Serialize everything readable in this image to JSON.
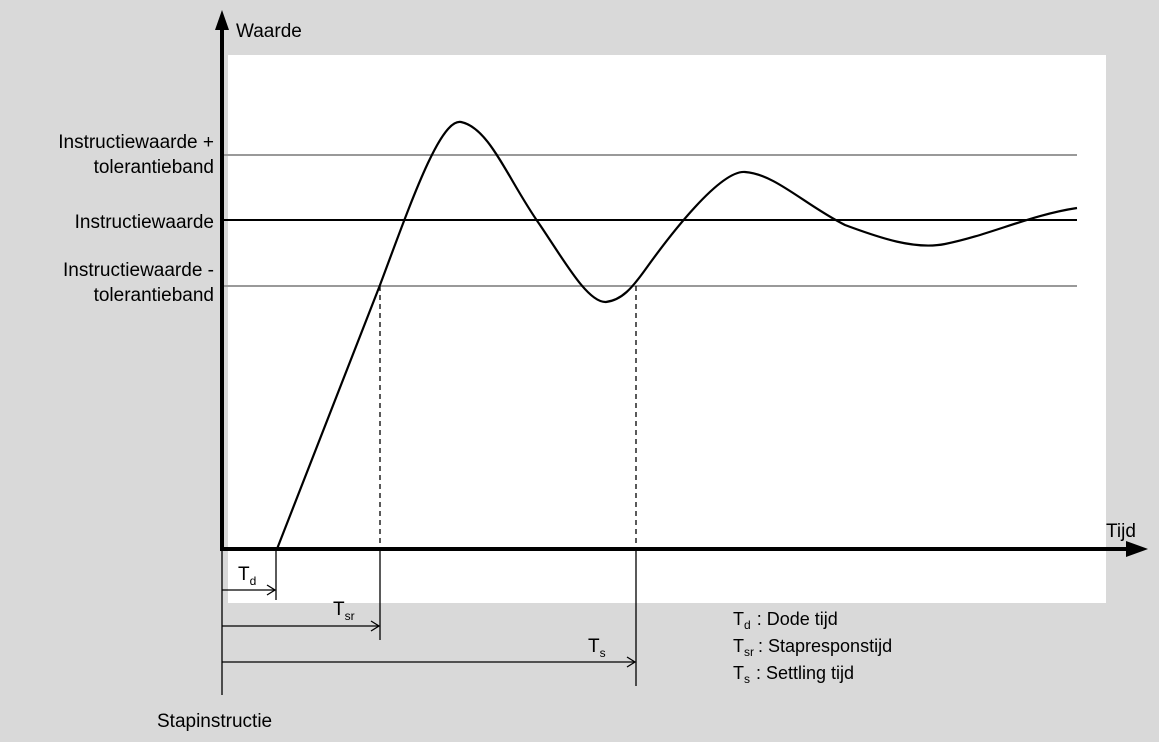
{
  "axes": {
    "y_label": "Waarde",
    "x_label": "Tijd"
  },
  "levels": {
    "upper": {
      "line1": "Instructiewaarde +",
      "line2": "tolerantieband"
    },
    "setpoint": {
      "label": "Instructiewaarde"
    },
    "lower": {
      "line1": "Instructiewaarde -",
      "line2": "tolerantieband"
    }
  },
  "timings": {
    "td": {
      "main": "T",
      "sub": "d"
    },
    "tsr": {
      "main": "T",
      "sub": "sr"
    },
    "ts": {
      "main": "T",
      "sub": "s"
    }
  },
  "step_label": "Stapinstructie",
  "legend": [
    {
      "main": "T",
      "sub": "d",
      "text": ": Dode tijd"
    },
    {
      "main": "T",
      "sub": "sr",
      "text": ": Stapresponstijd"
    },
    {
      "main": "T",
      "sub": "s",
      "text": ": Settling tijd"
    }
  ],
  "colors": {
    "background": "#d9d9d9",
    "plot_area": "#ffffff",
    "band_line": "#999999",
    "line": "#000000"
  }
}
